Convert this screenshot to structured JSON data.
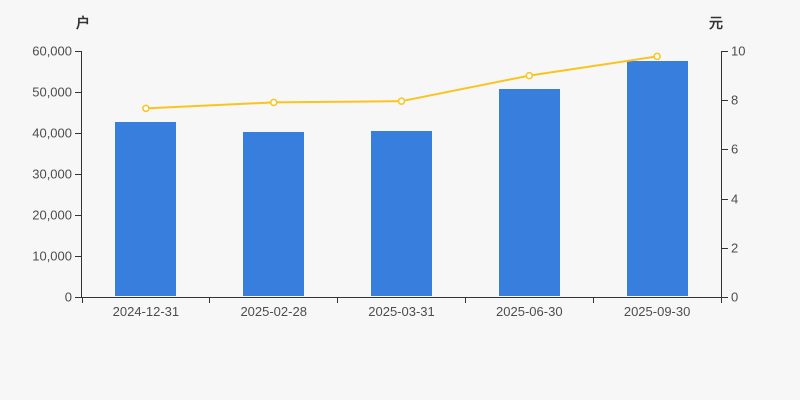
{
  "chart_data": {
    "type": "bar",
    "title": "",
    "categories": [
      "2024-12-31",
      "2025-02-28",
      "2025-03-31",
      "2025-06-30",
      "2025-09-30"
    ],
    "series": [
      {
        "type": "bar",
        "yaxis": "left",
        "color": "#377edd",
        "values": [
          42500,
          39900,
          40300,
          50400,
          57300
        ]
      },
      {
        "type": "line",
        "yaxis": "right",
        "color": "#fac41d",
        "marker": "hollow-circle",
        "values": [
          7.67,
          7.91,
          7.96,
          9.0,
          9.78
        ]
      }
    ],
    "left_axis": {
      "unit": "户",
      "min": 0,
      "max": 60000,
      "tick_step": 10000,
      "tick_labels": [
        "0",
        "10,000",
        "20,000",
        "30,000",
        "40,000",
        "50,000",
        "60,000"
      ]
    },
    "right_axis": {
      "unit": "元",
      "min": 0,
      "max": 10,
      "tick_step": 2,
      "tick_labels": [
        "0",
        "2",
        "4",
        "6",
        "8",
        "10"
      ]
    },
    "grid": false,
    "legend": "none",
    "background": "#f7f7f7",
    "axis_color": "#333333",
    "label_color": "#4d4d4d"
  }
}
